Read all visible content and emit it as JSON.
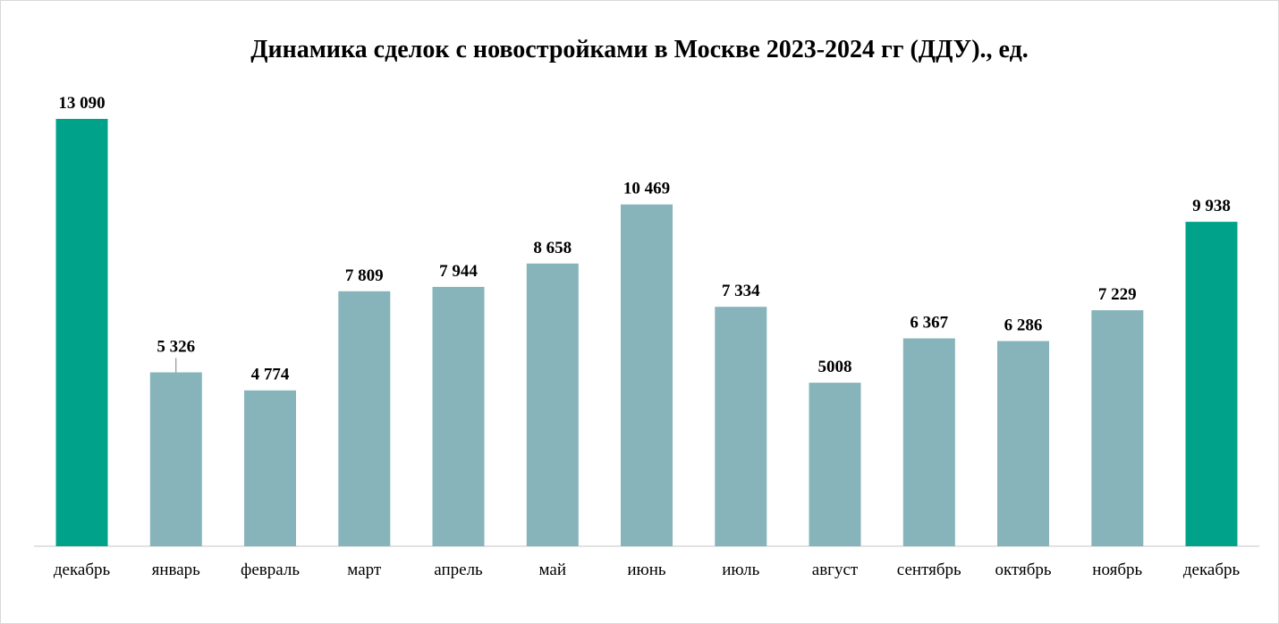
{
  "chart_data": {
    "type": "bar",
    "title": "Динамика сделок с новостройками в Москве 2023-2024 гг (ДДУ)., ед.",
    "categories": [
      "декабрь",
      "январь",
      "февраль",
      "март",
      "апрель",
      "май",
      "июнь",
      "июль",
      "август",
      "сентябрь",
      "октябрь",
      "ноябрь",
      "декабрь"
    ],
    "values": [
      13090,
      5326,
      4774,
      7809,
      7944,
      8658,
      10469,
      7334,
      5008,
      6367,
      6286,
      7229,
      9938
    ],
    "data_labels": [
      "13 090",
      "5 326",
      "4 774",
      "7 809",
      "7 944",
      "8 658",
      "10 469",
      "7 334",
      "5008",
      "6 367",
      "6 286",
      "7 229",
      "9 938"
    ],
    "ylim": [
      0,
      13090
    ],
    "grid": false,
    "legend": "none",
    "colors": {
      "highlight": "#00A389",
      "regular": "#86B4BA",
      "axis": "#d9d9d9",
      "leader_line": "#7f7f7f"
    },
    "highlighted_indices": [
      0,
      12
    ]
  }
}
